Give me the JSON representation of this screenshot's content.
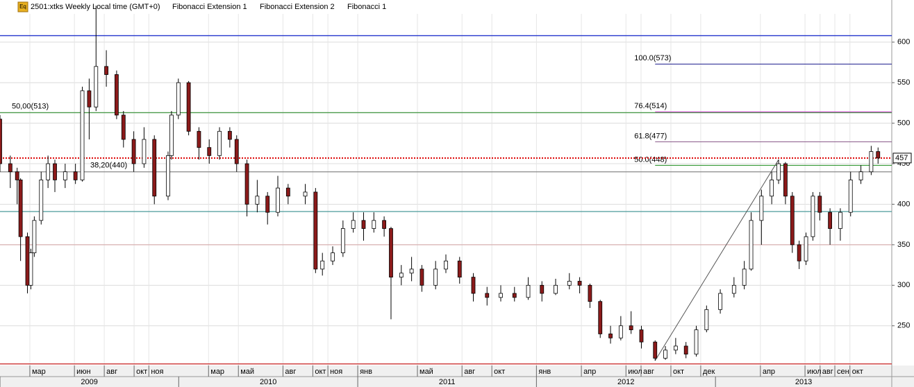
{
  "chart_data": {
    "type": "candlestick",
    "header": {
      "symbol": "2501:xtks Weekly Local time (GMT+0)",
      "studies": [
        "Fibonacci Extension 1",
        "Fibonacci Extension 2",
        "Fibonacci 1"
      ],
      "icon": "Eq"
    },
    "xlim": [
      0,
      260
    ],
    "ylim": [
      201,
      652
    ],
    "yticks": [
      250,
      300,
      350,
      400,
      450,
      500,
      550,
      600
    ],
    "xticks": [
      {
        "value": 8.7,
        "label": "мар"
      },
      {
        "value": 21.7,
        "label": "июн"
      },
      {
        "value": 30.4,
        "label": "авг"
      },
      {
        "value": 39.1,
        "label": "окт"
      },
      {
        "value": 43.4,
        "label": "ноя"
      },
      {
        "value": 60.8,
        "label": "мар"
      },
      {
        "value": 69.5,
        "label": "май"
      },
      {
        "value": 82.5,
        "label": "авг"
      },
      {
        "value": 91.2,
        "label": "окт"
      },
      {
        "value": 95.6,
        "label": "ноя"
      },
      {
        "value": 104.3,
        "label": "янв"
      },
      {
        "value": 121.7,
        "label": "май"
      },
      {
        "value": 134.7,
        "label": "авг"
      },
      {
        "value": 143.4,
        "label": "окт"
      },
      {
        "value": 156.4,
        "label": "янв"
      },
      {
        "value": 169.5,
        "label": "апр"
      },
      {
        "value": 182.5,
        "label": "июл"
      },
      {
        "value": 186.9,
        "label": "авг"
      },
      {
        "value": 195.6,
        "label": "окт"
      },
      {
        "value": 204.3,
        "label": "дек"
      },
      {
        "value": 221.7,
        "label": "апр"
      },
      {
        "value": 234.7,
        "label": "июл"
      },
      {
        "value": 239.1,
        "label": "авг"
      },
      {
        "value": 243.4,
        "label": "сен"
      },
      {
        "value": 247.8,
        "label": "окт"
      }
    ],
    "years": [
      {
        "value": 0,
        "label": "2009"
      },
      {
        "value": 52.1,
        "label": "2010"
      },
      {
        "value": 104.3,
        "label": "2011"
      },
      {
        "value": 156.4,
        "label": "2012"
      },
      {
        "value": 208.6,
        "label": "2013"
      }
    ],
    "up_color": "#ffffff",
    "down_color": "#8b1a1a",
    "ohlc": [
      [
        0,
        505,
        510,
        440,
        450
      ],
      [
        3,
        450,
        460,
        420,
        440
      ],
      [
        5,
        440,
        445,
        400,
        430
      ],
      [
        6,
        430,
        432,
        330,
        360
      ],
      [
        8,
        360,
        365,
        290,
        300
      ],
      [
        9,
        300,
        345,
        295,
        340
      ],
      [
        10,
        340,
        385,
        335,
        380
      ],
      [
        12,
        380,
        440,
        375,
        430
      ],
      [
        14,
        430,
        460,
        420,
        450
      ],
      [
        16,
        450,
        455,
        415,
        430
      ],
      [
        19,
        430,
        450,
        420,
        440
      ],
      [
        22,
        440,
        450,
        425,
        430
      ],
      [
        24,
        430,
        545,
        428,
        540
      ],
      [
        26,
        540,
        555,
        480,
        520
      ],
      [
        28,
        520,
        645,
        515,
        570
      ],
      [
        31,
        570,
        590,
        545,
        560
      ],
      [
        34,
        560,
        565,
        505,
        510
      ],
      [
        36,
        510,
        515,
        470,
        480
      ],
      [
        39,
        480,
        490,
        440,
        450
      ],
      [
        42,
        450,
        495,
        445,
        480
      ],
      [
        45,
        480,
        485,
        400,
        410
      ],
      [
        49,
        410,
        465,
        405,
        460
      ],
      [
        50,
        460,
        515,
        455,
        510
      ],
      [
        52,
        510,
        555,
        505,
        550
      ],
      [
        55,
        550,
        552,
        485,
        490
      ],
      [
        58,
        490,
        495,
        455,
        470
      ],
      [
        61,
        470,
        480,
        450,
        460
      ],
      [
        64,
        460,
        495,
        455,
        490
      ],
      [
        67,
        490,
        495,
        470,
        480
      ],
      [
        69,
        480,
        485,
        440,
        450
      ],
      [
        72,
        450,
        455,
        385,
        400
      ],
      [
        75,
        400,
        430,
        390,
        410
      ],
      [
        78,
        410,
        415,
        375,
        390
      ],
      [
        81,
        390,
        435,
        385,
        420
      ],
      [
        84,
        420,
        425,
        400,
        410
      ],
      [
        89,
        410,
        425,
        400,
        415
      ],
      [
        92,
        415,
        420,
        315,
        320
      ],
      [
        94,
        320,
        340,
        312,
        330
      ],
      [
        97,
        330,
        348,
        325,
        340
      ],
      [
        100,
        340,
        380,
        335,
        370
      ],
      [
        103,
        370,
        390,
        365,
        380
      ],
      [
        106,
        380,
        390,
        355,
        370
      ],
      [
        109,
        370,
        390,
        365,
        380
      ],
      [
        112,
        380,
        385,
        360,
        370
      ],
      [
        114,
        370,
        372,
        258,
        310
      ],
      [
        117,
        310,
        325,
        300,
        315
      ],
      [
        120,
        315,
        335,
        305,
        320
      ],
      [
        123,
        320,
        325,
        292,
        300
      ],
      [
        127,
        300,
        330,
        295,
        320
      ],
      [
        130,
        320,
        338,
        315,
        330
      ],
      [
        134,
        330,
        335,
        302,
        310
      ],
      [
        138,
        310,
        315,
        280,
        290
      ],
      [
        142,
        290,
        298,
        275,
        285
      ],
      [
        146,
        285,
        300,
        280,
        290
      ],
      [
        150,
        290,
        298,
        280,
        285
      ],
      [
        154,
        285,
        310,
        282,
        300
      ],
      [
        158,
        300,
        305,
        280,
        290
      ],
      [
        162,
        290,
        308,
        288,
        300
      ],
      [
        166,
        300,
        315,
        295,
        305
      ],
      [
        169,
        305,
        310,
        290,
        300
      ],
      [
        172,
        300,
        302,
        272,
        280
      ],
      [
        175,
        280,
        282,
        235,
        240
      ],
      [
        178,
        240,
        250,
        228,
        235
      ],
      [
        181,
        235,
        262,
        232,
        250
      ],
      [
        184,
        250,
        268,
        240,
        245
      ],
      [
        187,
        245,
        250,
        222,
        230
      ],
      [
        191,
        230,
        232,
        207,
        210
      ],
      [
        194,
        210,
        225,
        208,
        220
      ],
      [
        197,
        220,
        235,
        215,
        225
      ],
      [
        200,
        225,
        230,
        210,
        215
      ],
      [
        203,
        215,
        250,
        212,
        245
      ],
      [
        206,
        245,
        275,
        242,
        270
      ],
      [
        210,
        270,
        295,
        265,
        290
      ],
      [
        214,
        290,
        310,
        285,
        300
      ],
      [
        217,
        300,
        330,
        295,
        320
      ],
      [
        219,
        320,
        390,
        318,
        380
      ],
      [
        222,
        380,
        418,
        350,
        410
      ],
      [
        225,
        410,
        440,
        400,
        430
      ],
      [
        227,
        430,
        455,
        425,
        450
      ],
      [
        229,
        450,
        452,
        400,
        410
      ],
      [
        231,
        410,
        415,
        340,
        350
      ],
      [
        233,
        350,
        355,
        320,
        330
      ],
      [
        235,
        330,
        365,
        325,
        360
      ],
      [
        237,
        360,
        415,
        355,
        410
      ],
      [
        239,
        410,
        415,
        380,
        390
      ],
      [
        242,
        390,
        395,
        350,
        370
      ],
      [
        245,
        370,
        395,
        355,
        390
      ],
      [
        248,
        390,
        440,
        385,
        430
      ],
      [
        251,
        430,
        448,
        425,
        440
      ],
      [
        254,
        440,
        472,
        436,
        465
      ],
      [
        256,
        465,
        470,
        450,
        457
      ]
    ],
    "levels": [
      {
        "value": 608,
        "color": "#2233cc"
      },
      {
        "value": 513,
        "color": "#4a9a4a",
        "label": "50,00(513)"
      },
      {
        "value": 440,
        "color": "#888888",
        "label": "38,20(440)"
      },
      {
        "value": 391,
        "color": "#4a9a9a"
      },
      {
        "value": 350,
        "color": "#d8b0b0"
      },
      {
        "value": 203,
        "color": "#cc3333"
      }
    ],
    "fib_extension": {
      "start_x": 191,
      "levels": [
        {
          "value": 573,
          "label": "100.0(573)",
          "color": "#1a1a8c"
        },
        {
          "value": 514,
          "label": "76.4(514)",
          "color": "#cc33cc"
        },
        {
          "value": 477,
          "label": "61.8(477)",
          "color": "#8a5a8a"
        },
        {
          "value": 448,
          "label": "50.0(448)",
          "color": "#1a8c1a"
        }
      ]
    },
    "trend_line": {
      "x": [
        191,
        227
      ],
      "y": [
        207,
        455
      ]
    },
    "last_price": 457
  }
}
